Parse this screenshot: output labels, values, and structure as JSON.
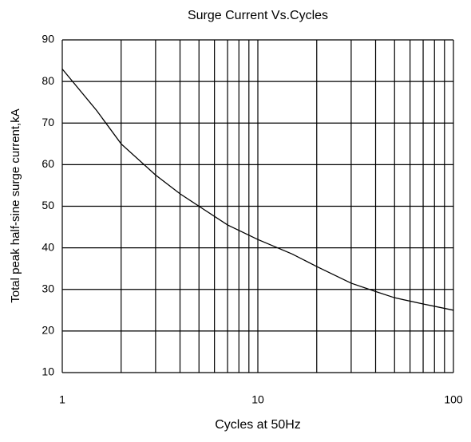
{
  "chart_data": {
    "type": "line",
    "title": "Surge Current Vs.Cycles",
    "xlabel": "Cycles at 50Hz",
    "ylabel": "Total peak half-sine surge current,kA",
    "x": [
      1,
      1.5,
      2,
      3,
      4,
      5,
      7,
      10,
      15,
      20,
      30,
      40,
      50,
      70,
      100
    ],
    "series": [
      {
        "name": "Surge current",
        "color": "#000000",
        "values": [
          83,
          73,
          65,
          57.5,
          53,
          50,
          45.5,
          42,
          38.5,
          35.5,
          31.5,
          29.5,
          28,
          26.5,
          25
        ]
      }
    ],
    "xlim": [
      1,
      100
    ],
    "xticks": [
      1,
      10,
      100
    ],
    "xgrid": [
      2,
      3,
      4,
      5,
      6,
      7,
      8,
      9,
      20,
      30,
      40,
      50,
      60,
      70,
      80,
      90
    ],
    "ylim": [
      10,
      90
    ],
    "yticks": [
      10,
      20,
      30,
      40,
      50,
      60,
      70,
      80,
      90
    ],
    "xscale": "log",
    "grid": true
  }
}
